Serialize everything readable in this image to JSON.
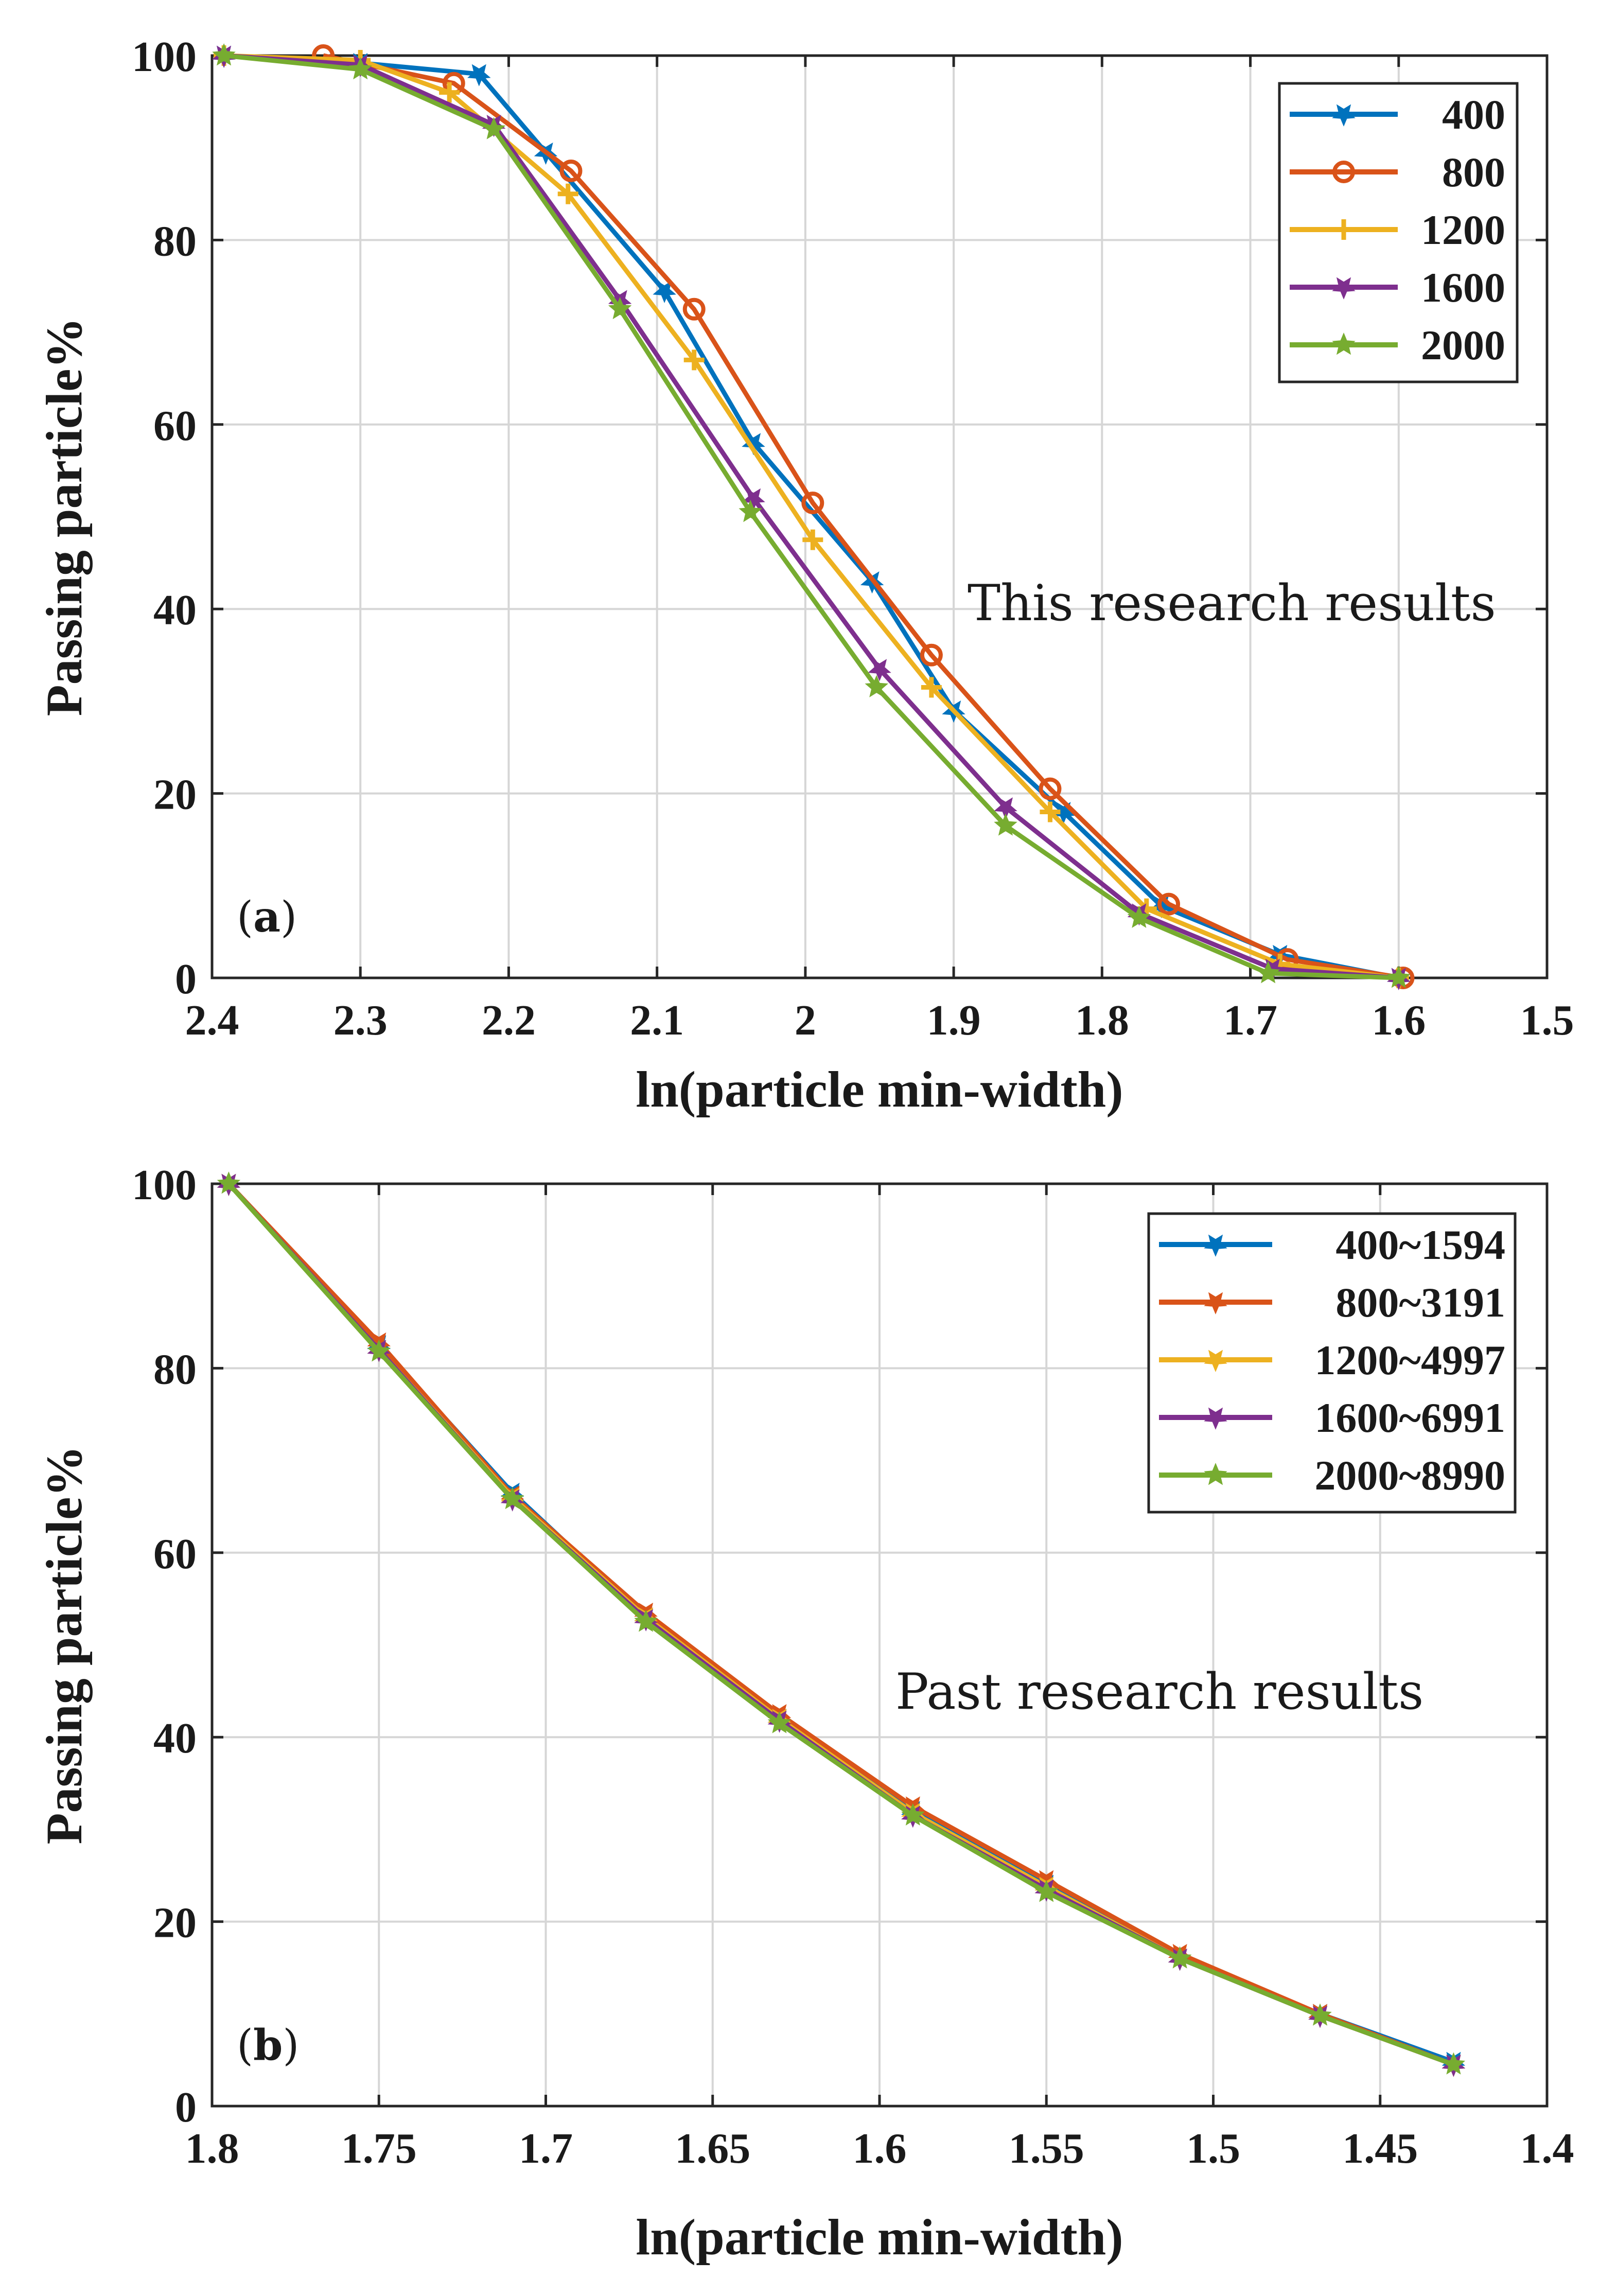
{
  "chart_data": [
    {
      "type": "line",
      "panel": "a",
      "panel_label": "a",
      "annotation": "This research results",
      "xlabel": "ln(particle min-width)",
      "ylabel": "Passing particle%",
      "xlim": [
        2.4,
        1.5
      ],
      "ylim": [
        0,
        100
      ],
      "xticks": [
        "2.4",
        "2.3",
        "2.2",
        "2.1",
        "2",
        "1.9",
        "1.8",
        "1.7",
        "1.6",
        "1.5"
      ],
      "yticks": [
        "0",
        "20",
        "40",
        "60",
        "80",
        "100"
      ],
      "grid": true,
      "legend_position": "top-right",
      "series": [
        {
          "name": "400",
          "color": "#0072BD",
          "marker": "star-down",
          "x": [
            2.392,
            2.3,
            2.22,
            2.175,
            2.095,
            2.035,
            1.955,
            1.9,
            1.826,
            1.76,
            1.68,
            1.6
          ],
          "y": [
            100,
            99.2,
            98.0,
            89.5,
            74.5,
            58.0,
            43.0,
            29.0,
            18.0,
            7.8,
            2.5,
            0
          ]
        },
        {
          "name": "800",
          "color": "#D95319",
          "marker": "circle",
          "x": [
            2.325,
            2.237,
            2.158,
            2.075,
            1.995,
            1.915,
            1.835,
            1.755,
            1.675,
            1.597
          ],
          "y": [
            100,
            97.0,
            87.5,
            72.5,
            51.5,
            35.0,
            20.5,
            8.0,
            2.0,
            0
          ]
        },
        {
          "name": "1200",
          "color": "#EDB120",
          "marker": "plus",
          "x": [
            2.392,
            2.3,
            2.24,
            2.16,
            2.075,
            1.995,
            1.915,
            1.835,
            1.77,
            1.68,
            1.6
          ],
          "y": [
            100,
            99.5,
            96.0,
            85.0,
            67.0,
            47.5,
            31.5,
            18.0,
            7.5,
            1.5,
            0
          ]
        },
        {
          "name": "1600",
          "color": "#7E2F8E",
          "marker": "star-down",
          "x": [
            2.392,
            2.3,
            2.21,
            2.125,
            2.035,
            1.95,
            1.865,
            1.775,
            1.685,
            1.6
          ],
          "y": [
            100,
            99.0,
            92.5,
            73.5,
            52.0,
            33.5,
            18.5,
            7.0,
            1.0,
            0
          ]
        },
        {
          "name": "2000",
          "color": "#77AC30",
          "marker": "star",
          "x": [
            2.392,
            2.3,
            2.21,
            2.125,
            2.037,
            1.952,
            1.865,
            1.775,
            1.688,
            1.6
          ],
          "y": [
            100,
            98.5,
            92.0,
            72.5,
            50.5,
            31.5,
            16.5,
            6.5,
            0.5,
            0
          ]
        }
      ]
    },
    {
      "type": "line",
      "panel": "b",
      "panel_label": "b",
      "annotation": "Past research results",
      "xlabel": "ln(particle min-width)",
      "ylabel": "Passing particle%",
      "xlim": [
        1.8,
        1.4
      ],
      "ylim": [
        0,
        100
      ],
      "xticks": [
        "1.8",
        "1.75",
        "1.7",
        "1.65",
        "1.6",
        "1.55",
        "1.5",
        "1.45",
        "1.4"
      ],
      "yticks": [
        "0",
        "20",
        "40",
        "60",
        "80",
        "100"
      ],
      "grid": true,
      "legend_position": "top-right",
      "series": [
        {
          "name": "400~1594",
          "color": "#0072BD",
          "marker": "star-down",
          "x": [
            1.795,
            1.75,
            1.71,
            1.67,
            1.63,
            1.59,
            1.55,
            1.51,
            1.468,
            1.428
          ],
          "y": [
            100,
            82.5,
            66.5,
            53.0,
            42.0,
            32.0,
            24.0,
            16.0,
            10.0,
            4.8
          ]
        },
        {
          "name": "800~3191",
          "color": "#D95319",
          "marker": "star-down",
          "x": [
            1.795,
            1.75,
            1.71,
            1.67,
            1.63,
            1.59,
            1.55,
            1.51,
            1.468,
            1.428
          ],
          "y": [
            100,
            82.8,
            66.2,
            53.5,
            42.5,
            32.5,
            24.5,
            16.5,
            10.0,
            4.5
          ]
        },
        {
          "name": "1200~4997",
          "color": "#EDB120",
          "marker": "star-down",
          "x": [
            1.795,
            1.75,
            1.71,
            1.67,
            1.63,
            1.59,
            1.55,
            1.51,
            1.468,
            1.428
          ],
          "y": [
            100,
            82.0,
            66.0,
            53.0,
            42.0,
            31.8,
            23.8,
            16.0,
            9.8,
            4.5
          ]
        },
        {
          "name": "1600~6991",
          "color": "#7E2F8E",
          "marker": "star-down",
          "x": [
            1.795,
            1.75,
            1.71,
            1.67,
            1.63,
            1.59,
            1.55,
            1.51,
            1.468,
            1.428
          ],
          "y": [
            100,
            82.0,
            65.8,
            52.8,
            41.8,
            31.5,
            23.5,
            16.0,
            9.8,
            4.5
          ]
        },
        {
          "name": "2000~8990",
          "color": "#77AC30",
          "marker": "star",
          "x": [
            1.795,
            1.75,
            1.71,
            1.67,
            1.63,
            1.59,
            1.55,
            1.51,
            1.468,
            1.428
          ],
          "y": [
            100,
            81.8,
            65.8,
            52.5,
            41.5,
            31.5,
            23.2,
            16.0,
            9.8,
            4.5
          ]
        }
      ]
    }
  ]
}
